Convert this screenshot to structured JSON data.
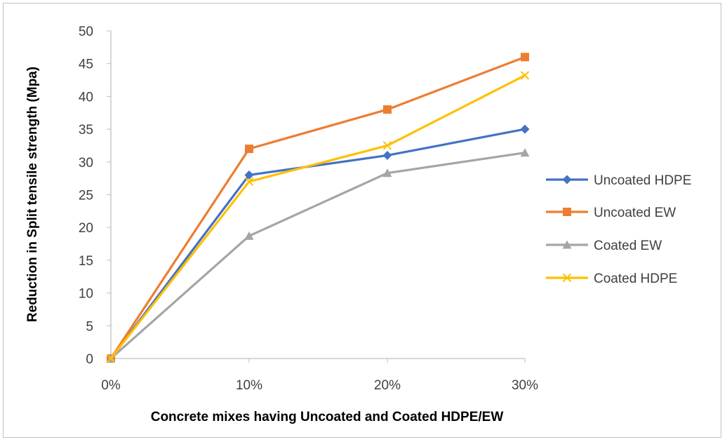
{
  "chart_data": {
    "type": "line",
    "title": "",
    "xlabel": "Concrete mixes having Uncoated and Coated HDPE/EW",
    "ylabel": "Reduction in Split tensile strength (Mpa)",
    "categories": [
      "0%",
      "10%",
      "20%",
      "30%"
    ],
    "yticks": [
      "0",
      "5",
      "10",
      "15",
      "20",
      "25",
      "30",
      "35",
      "40",
      "45",
      "50"
    ],
    "ylim": [
      0,
      50
    ],
    "grid": false,
    "legend_position": "right",
    "series": [
      {
        "name": "Uncoated HDPE",
        "values": [
          0,
          28,
          31,
          35
        ],
        "color": "#4472C4",
        "marker": "diamond"
      },
      {
        "name": "Uncoated EW",
        "values": [
          0,
          32,
          38,
          46
        ],
        "color": "#ED7D31",
        "marker": "square"
      },
      {
        "name": "Coated EW",
        "values": [
          0,
          18.7,
          28.3,
          31.4
        ],
        "color": "#A5A5A5",
        "marker": "triangle"
      },
      {
        "name": "Coated HDPE",
        "values": [
          0,
          27,
          32.5,
          43.2
        ],
        "color": "#FFC000",
        "marker": "x"
      }
    ]
  }
}
